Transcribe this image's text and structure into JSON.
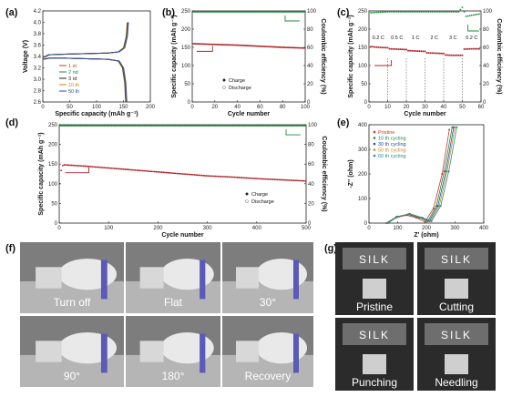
{
  "colors": {
    "red": "#b0242a",
    "green": "#1e8a3a",
    "black": "#222222",
    "blue": "#2a4da0",
    "orange": "#c98a1a",
    "teal": "#2b8a8a",
    "gray_photo": "#8c8c8c",
    "dark_photo": "#3a3a3a"
  },
  "chart_data": [
    {
      "panel": "(a)",
      "type": "line",
      "xlabel": "Specific capacity (mAh g⁻¹)",
      "ylabel": "Voltage (V)",
      "xlim": [
        0,
        200
      ],
      "ylim": [
        2.6,
        4.2
      ],
      "xticks": [
        0,
        50,
        100,
        150,
        200
      ],
      "yticks": [
        2.6,
        2.8,
        3.0,
        3.2,
        3.4,
        3.6,
        3.8,
        4.0,
        4.2
      ],
      "legend": [
        "1 st",
        "2 nd",
        "3 rd",
        "10 th",
        "50 th"
      ],
      "legend_colors": [
        "#c0392b",
        "#1e8a3a",
        "#222222",
        "#c98a1a",
        "#2a4da0"
      ],
      "charge_curve": {
        "x": [
          0,
          10,
          40,
          80,
          120,
          140,
          150,
          155,
          157
        ],
        "y": [
          3.38,
          3.43,
          3.44,
          3.45,
          3.46,
          3.48,
          3.55,
          3.75,
          4.0
        ]
      },
      "discharge_curve": {
        "x": [
          0,
          10,
          40,
          80,
          120,
          140,
          148,
          152,
          154
        ],
        "y": [
          3.35,
          3.37,
          3.37,
          3.36,
          3.35,
          3.32,
          3.2,
          2.95,
          2.5
        ]
      }
    },
    {
      "panel": "(b)",
      "type": "scatter",
      "xlabel": "Cycle number",
      "ylabel": "Specific capacity (mAh g⁻¹)",
      "y2label": "Coulombic efficiency (%)",
      "xlim": [
        0,
        100
      ],
      "ylim": [
        0,
        250
      ],
      "y2lim": [
        0,
        100
      ],
      "xticks": [
        0,
        20,
        40,
        60,
        80,
        100
      ],
      "yticks": [
        0,
        50,
        100,
        150,
        200,
        250
      ],
      "y2ticks": [
        0,
        20,
        40,
        60,
        80,
        100
      ],
      "legend": [
        "Charge",
        "Discharge"
      ],
      "series": [
        {
          "name": "Charge",
          "x": [
            1,
            20,
            40,
            60,
            80,
            100
          ],
          "values": [
            160,
            158,
            156,
            153,
            150,
            148
          ]
        },
        {
          "name": "Discharge",
          "x": [
            1,
            20,
            40,
            60,
            80,
            100
          ],
          "values": [
            158,
            157,
            155,
            152,
            149,
            147
          ]
        },
        {
          "name": "Coulombic efficiency",
          "x": [
            1,
            20,
            40,
            60,
            80,
            100
          ],
          "values": [
            99,
            99,
            99,
            99,
            99,
            99
          ]
        }
      ]
    },
    {
      "panel": "(c)",
      "type": "scatter",
      "xlabel": "Cycle number",
      "ylabel": "Specific capacity (mAh g⁻¹)",
      "y2label": "Coulombic efficiency (%)",
      "xlim": [
        0,
        60
      ],
      "ylim": [
        0,
        250
      ],
      "y2lim": [
        0,
        100
      ],
      "xticks": [
        0,
        10,
        20,
        30,
        40,
        50,
        60
      ],
      "yticks": [
        0,
        50,
        100,
        150,
        200,
        250
      ],
      "y2ticks": [
        0,
        20,
        40,
        60,
        80,
        100
      ],
      "rate_labels": [
        "0.2 C",
        "0.5 C",
        "1 C",
        "2 C",
        "3 C",
        "0.2 C"
      ],
      "rate_boundaries": [
        10,
        20,
        30,
        40,
        50
      ],
      "series": [
        {
          "name": "Charge",
          "x": [
            1,
            5,
            10,
            11,
            15,
            20,
            21,
            25,
            30,
            31,
            35,
            40,
            41,
            45,
            50,
            51,
            55,
            60
          ],
          "values": [
            152,
            150,
            149,
            146,
            145,
            144,
            141,
            140,
            139,
            135,
            134,
            133,
            129,
            128,
            128,
            145,
            146,
            146
          ]
        },
        {
          "name": "Coulombic efficiency",
          "x": [
            1,
            10,
            20,
            30,
            40,
            48,
            50,
            52,
            60
          ],
          "values": [
            98,
            99,
            99,
            99,
            99,
            99,
            104,
            94,
            97
          ]
        }
      ]
    },
    {
      "panel": "(d)",
      "type": "scatter",
      "xlabel": "Cycle number",
      "ylabel": "Specific capacity (mAh g⁻¹)",
      "y2label": "Coulombic efficiency (%)",
      "xlim": [
        0,
        500
      ],
      "ylim": [
        0,
        250
      ],
      "y2lim": [
        0,
        100
      ],
      "xticks": [
        0,
        100,
        200,
        300,
        400,
        500
      ],
      "yticks": [
        0,
        50,
        100,
        150,
        200,
        250
      ],
      "y2ticks": [
        0,
        20,
        40,
        60,
        80,
        100
      ],
      "legend": [
        "Charge",
        "Discharge"
      ],
      "series": [
        {
          "name": "Charge",
          "x": [
            1,
            5,
            10,
            50,
            100,
            150,
            200,
            250,
            300,
            350,
            400,
            450,
            500
          ],
          "values": [
            100,
            145,
            148,
            145,
            140,
            135,
            130,
            125,
            120,
            117,
            113,
            110,
            107
          ]
        },
        {
          "name": "Discharge",
          "x": [
            1,
            5,
            10,
            50,
            100,
            150,
            200,
            250,
            300,
            350,
            400,
            450,
            500
          ],
          "values": [
            92,
            144,
            147,
            144,
            139,
            134,
            129,
            124,
            119,
            116,
            112,
            109,
            106
          ]
        },
        {
          "name": "Coulombic efficiency",
          "x": [
            1,
            100,
            200,
            300,
            400,
            500
          ],
          "values": [
            99,
            99,
            99,
            99,
            99,
            99
          ]
        }
      ]
    },
    {
      "panel": "(e)",
      "type": "line",
      "xlabel": "Z' (ohm)",
      "ylabel": "-Z'' (ohm)",
      "xlim": [
        0,
        400
      ],
      "ylim": [
        0,
        400
      ],
      "xticks": [
        0,
        100,
        200,
        300,
        400
      ],
      "yticks": [
        0,
        100,
        200,
        300,
        400
      ],
      "legend": [
        "Pristine",
        "10 th cycling",
        "30 th cycling",
        "50 th cycling",
        "60 th cycling"
      ],
      "legend_colors": [
        "#c0392b",
        "#1e8a3a",
        "#2a4da0",
        "#c98a1a",
        "#2b8a8a"
      ],
      "series": [
        {
          "name": "Pristine",
          "x": [
            65,
            95,
            130,
            165,
            195,
            225,
            255,
            280
          ],
          "values": [
            0,
            22,
            32,
            22,
            5,
            60,
            200,
            380
          ]
        },
        {
          "name": "10 th cycling",
          "x": [
            60,
            95,
            135,
            175,
            205,
            235,
            262,
            290
          ],
          "values": [
            0,
            25,
            35,
            22,
            8,
            70,
            210,
            390
          ]
        },
        {
          "name": "30 th cycling",
          "x": [
            62,
            97,
            138,
            178,
            210,
            240,
            268,
            295
          ],
          "values": [
            0,
            25,
            36,
            22,
            8,
            70,
            210,
            390
          ]
        },
        {
          "name": "50 th cycling",
          "x": [
            64,
            99,
            140,
            182,
            214,
            245,
            272,
            300
          ],
          "values": [
            0,
            26,
            37,
            22,
            8,
            70,
            210,
            390
          ]
        },
        {
          "name": "60 th cycling",
          "x": [
            66,
            101,
            143,
            186,
            218,
            250,
            278,
            306
          ],
          "values": [
            0,
            27,
            38,
            22,
            8,
            70,
            210,
            390
          ]
        }
      ]
    }
  ],
  "panels": {
    "a": "(a)",
    "b": "(b)",
    "c": "(c)",
    "d": "(d)",
    "e": "(e)",
    "f": "(f)",
    "g": "(g)"
  },
  "photos_f": [
    "Turn off",
    "Flat",
    "30°",
    "90°",
    "180°",
    "Recovery"
  ],
  "photos_g": [
    "Pristine",
    "Cutting",
    "Punching",
    "Needling"
  ],
  "led_text": "SILK"
}
